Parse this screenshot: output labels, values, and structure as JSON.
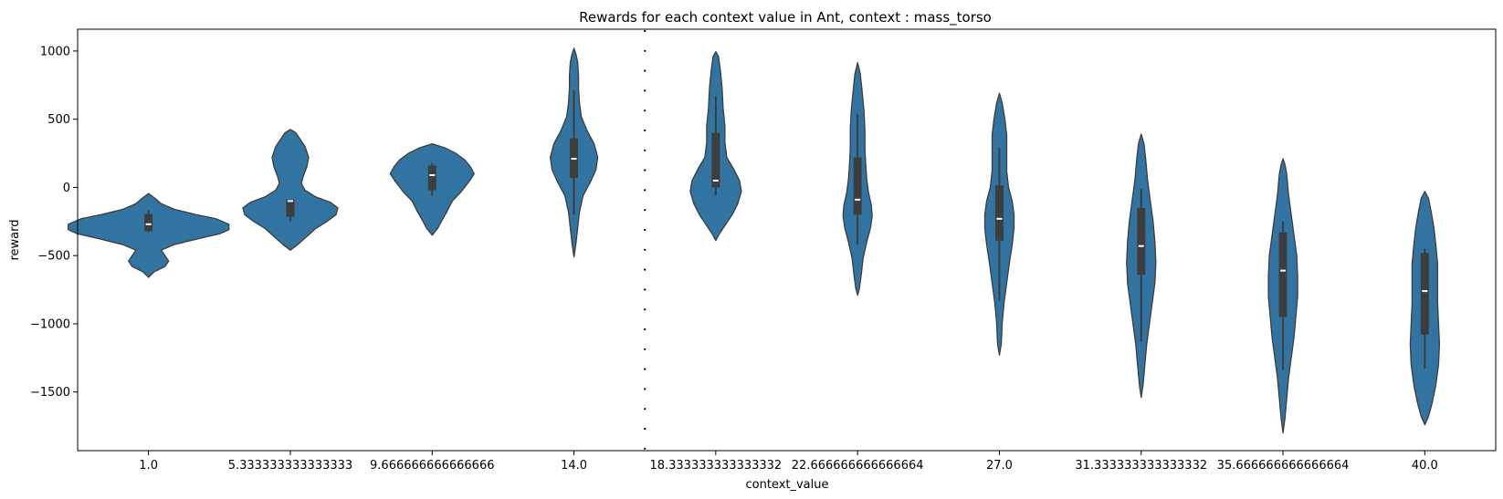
{
  "chart_data": {
    "type": "violin",
    "title": "Rewards for each context value in Ant, context : mass_torso",
    "xlabel": "context_value",
    "ylabel": "reward",
    "ylim": [
      -1930,
      1160
    ],
    "yticks": [
      -1500,
      -1000,
      -500,
      0,
      500,
      1000
    ],
    "ytick_labels": [
      "−1500",
      "−1000",
      "−500",
      "0",
      "500",
      "1000"
    ],
    "categories": [
      "1.0",
      "5.333333333333333",
      "9.666666666666666",
      "14.0",
      "18.333333333333332",
      "22.666666666666664",
      "27.0",
      "31.333333333333332",
      "35.666666666666664",
      "40.0"
    ],
    "grid": false,
    "divider": {
      "between_categories": [
        3,
        4
      ],
      "style": "dotted"
    },
    "colors": {
      "violin_fill": "#3274a1",
      "violin_edge": "#3d3d3d",
      "box": "#3d3d3d",
      "median": "#ffffff",
      "divider": "#000000"
    },
    "violins": [
      {
        "category": "1.0",
        "whisker": [
          -330,
          -170
        ],
        "q1": -320,
        "q3": -195,
        "median": -270,
        "profile": [
          [
            -660,
            0
          ],
          [
            -620,
            6
          ],
          [
            -580,
            18
          ],
          [
            -540,
            22
          ],
          [
            -500,
            18
          ],
          [
            -460,
            14
          ],
          [
            -420,
            28
          ],
          [
            -380,
            52
          ],
          [
            -340,
            78
          ],
          [
            -310,
            88
          ],
          [
            -270,
            88
          ],
          [
            -230,
            74
          ],
          [
            -200,
            52
          ],
          [
            -160,
            28
          ],
          [
            -120,
            14
          ],
          [
            -80,
            7
          ],
          [
            -45,
            0
          ]
        ]
      },
      {
        "category": "5.333333333333333",
        "whisker": [
          -250,
          -90
        ],
        "q1": -215,
        "q3": -90,
        "median": -100,
        "profile": [
          [
            -460,
            0
          ],
          [
            -420,
            8
          ],
          [
            -360,
            18
          ],
          [
            -300,
            28
          ],
          [
            -250,
            40
          ],
          [
            -200,
            50
          ],
          [
            -150,
            52
          ],
          [
            -110,
            44
          ],
          [
            -70,
            28
          ],
          [
            -20,
            16
          ],
          [
            30,
            12
          ],
          [
            80,
            14
          ],
          [
            150,
            18
          ],
          [
            220,
            20
          ],
          [
            300,
            16
          ],
          [
            360,
            10
          ],
          [
            400,
            6
          ],
          [
            425,
            0
          ]
        ]
      },
      {
        "category": "9.666666666666666",
        "whisker": [
          -60,
          180
        ],
        "q1": -20,
        "q3": 160,
        "median": 90,
        "profile": [
          [
            -350,
            0
          ],
          [
            -300,
            6
          ],
          [
            -250,
            10
          ],
          [
            -180,
            16
          ],
          [
            -100,
            22
          ],
          [
            -30,
            32
          ],
          [
            40,
            40
          ],
          [
            100,
            46
          ],
          [
            150,
            42
          ],
          [
            200,
            36
          ],
          [
            250,
            26
          ],
          [
            290,
            14
          ],
          [
            320,
            0
          ]
        ]
      },
      {
        "category": "14.0",
        "whisker": [
          -200,
          710
        ],
        "q1": 70,
        "q3": 360,
        "median": 210,
        "profile": [
          [
            -510,
            0
          ],
          [
            -420,
            2
          ],
          [
            -300,
            4
          ],
          [
            -180,
            6
          ],
          [
            -60,
            10
          ],
          [
            40,
            18
          ],
          [
            130,
            24
          ],
          [
            220,
            26
          ],
          [
            320,
            22
          ],
          [
            420,
            14
          ],
          [
            520,
            8
          ],
          [
            620,
            6
          ],
          [
            720,
            5
          ],
          [
            820,
            5
          ],
          [
            920,
            4
          ],
          [
            980,
            2
          ],
          [
            1020,
            0
          ]
        ]
      },
      {
        "category": "18.333333333333332",
        "whisker": [
          -60,
          670
        ],
        "q1": 0,
        "q3": 400,
        "median": 50,
        "profile": [
          [
            -390,
            0
          ],
          [
            -340,
            4
          ],
          [
            -280,
            10
          ],
          [
            -200,
            18
          ],
          [
            -120,
            24
          ],
          [
            -30,
            28
          ],
          [
            50,
            26
          ],
          [
            130,
            20
          ],
          [
            220,
            12
          ],
          [
            330,
            10
          ],
          [
            450,
            10
          ],
          [
            580,
            8
          ],
          [
            720,
            7
          ],
          [
            860,
            5
          ],
          [
            960,
            3
          ],
          [
            995,
            0
          ]
        ]
      },
      {
        "category": "22.666666666666664",
        "whisker": [
          -420,
          540
        ],
        "q1": -200,
        "q3": 220,
        "median": -90,
        "profile": [
          [
            -790,
            0
          ],
          [
            -740,
            2
          ],
          [
            -640,
            4
          ],
          [
            -520,
            6
          ],
          [
            -400,
            10
          ],
          [
            -300,
            14
          ],
          [
            -210,
            16
          ],
          [
            -130,
            15
          ],
          [
            -40,
            12
          ],
          [
            60,
            10
          ],
          [
            160,
            9
          ],
          [
            280,
            8
          ],
          [
            420,
            8
          ],
          [
            560,
            7
          ],
          [
            700,
            5
          ],
          [
            830,
            3
          ],
          [
            915,
            0
          ]
        ]
      },
      {
        "category": "27.0",
        "whisker": [
          -830,
          290
        ],
        "q1": -390,
        "q3": 15,
        "median": -230,
        "profile": [
          [
            -1230,
            0
          ],
          [
            -1150,
            2
          ],
          [
            -1000,
            3
          ],
          [
            -850,
            5
          ],
          [
            -700,
            8
          ],
          [
            -550,
            11
          ],
          [
            -420,
            14
          ],
          [
            -300,
            16
          ],
          [
            -200,
            16
          ],
          [
            -100,
            14
          ],
          [
            0,
            10
          ],
          [
            120,
            8
          ],
          [
            250,
            8
          ],
          [
            380,
            8
          ],
          [
            500,
            6
          ],
          [
            620,
            3
          ],
          [
            690,
            0
          ]
        ]
      },
      {
        "category": "31.333333333333332",
        "whisker": [
          -1130,
          -10
        ],
        "q1": -640,
        "q3": -150,
        "median": -430,
        "profile": [
          [
            -1540,
            0
          ],
          [
            -1450,
            2
          ],
          [
            -1300,
            4
          ],
          [
            -1150,
            6
          ],
          [
            -1000,
            9
          ],
          [
            -850,
            12
          ],
          [
            -700,
            15
          ],
          [
            -550,
            16
          ],
          [
            -400,
            15
          ],
          [
            -250,
            13
          ],
          [
            -100,
            10
          ],
          [
            50,
            7
          ],
          [
            200,
            5
          ],
          [
            320,
            3
          ],
          [
            390,
            0
          ]
        ]
      },
      {
        "category": "35.666666666666664",
        "whisker": [
          -1340,
          -250
        ],
        "q1": -950,
        "q3": -330,
        "median": -610,
        "profile": [
          [
            -1800,
            0
          ],
          [
            -1700,
            2
          ],
          [
            -1550,
            4
          ],
          [
            -1400,
            6
          ],
          [
            -1250,
            9
          ],
          [
            -1100,
            12
          ],
          [
            -950,
            14
          ],
          [
            -800,
            16
          ],
          [
            -650,
            16
          ],
          [
            -500,
            15
          ],
          [
            -350,
            12
          ],
          [
            -200,
            9
          ],
          [
            -50,
            6
          ],
          [
            100,
            4
          ],
          [
            170,
            2
          ],
          [
            210,
            0
          ]
        ]
      },
      {
        "category": "40.0",
        "whisker": [
          -1330,
          -450
        ],
        "q1": -1080,
        "q3": -480,
        "median": -760,
        "profile": [
          [
            -1740,
            0
          ],
          [
            -1680,
            4
          ],
          [
            -1580,
            8
          ],
          [
            -1450,
            12
          ],
          [
            -1300,
            15
          ],
          [
            -1150,
            16
          ],
          [
            -1000,
            15
          ],
          [
            -850,
            14
          ],
          [
            -700,
            14
          ],
          [
            -560,
            14
          ],
          [
            -420,
            12
          ],
          [
            -300,
            10
          ],
          [
            -180,
            7
          ],
          [
            -80,
            4
          ],
          [
            -30,
            0
          ]
        ]
      }
    ]
  }
}
